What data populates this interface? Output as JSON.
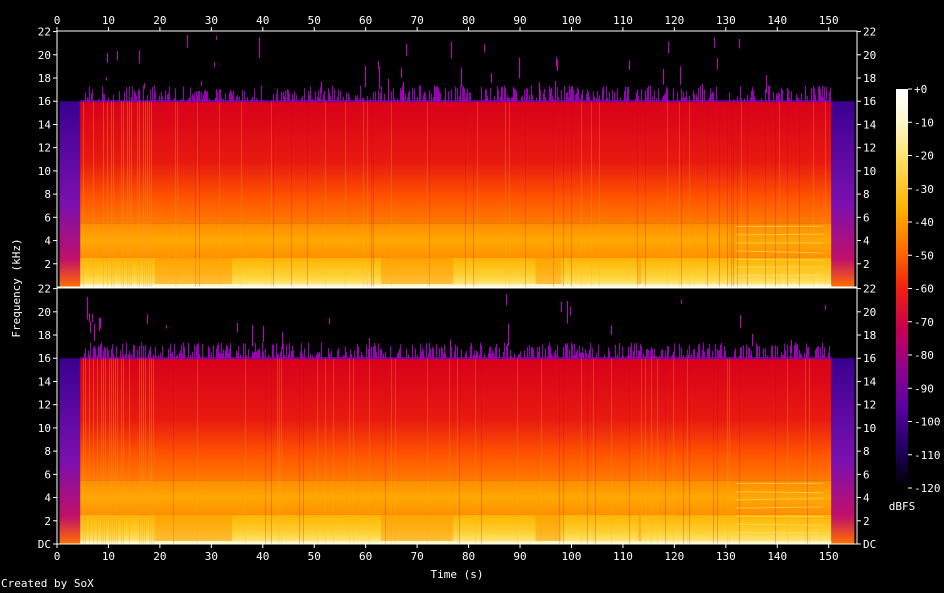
{
  "footer": "Created by SoX",
  "chart_data": {
    "type": "heatmap",
    "subtype": "spectrogram",
    "channels": 2,
    "xlabel": "Time (s)",
    "ylabel": "Frequency (kHz)",
    "x_ticks": [
      0,
      10,
      20,
      30,
      40,
      50,
      60,
      70,
      80,
      90,
      100,
      110,
      120,
      130,
      140,
      150
    ],
    "xlim": [
      0,
      155.5
    ],
    "y_ticks": [
      "DC",
      "2",
      "4",
      "6",
      "8",
      "10",
      "12",
      "14",
      "16",
      "18",
      "20",
      "22"
    ],
    "ylim_khz": [
      0,
      22.05
    ],
    "content_start_s": 4.5,
    "content_end_s": 150.5,
    "lowpass_cutoff_khz": 16,
    "loud_bands_khz": [
      [
        0,
        2.5
      ],
      [
        2.5,
        5.5
      ]
    ],
    "colorbar": {
      "label": "dBFS",
      "ticks": [
        "+0",
        "-10",
        "-20",
        "-30",
        "-40",
        "-50",
        "-60",
        "-70",
        "-80",
        "-90",
        "-100",
        "-110",
        "-120"
      ],
      "range_db": [
        -120,
        0
      ]
    },
    "grid": false,
    "colormap": [
      "#000000",
      "#1a0050",
      "#5a00a8",
      "#a000b0",
      "#e8002a",
      "#ff4a00",
      "#ff9a00",
      "#ffe060",
      "#ffffff"
    ]
  }
}
